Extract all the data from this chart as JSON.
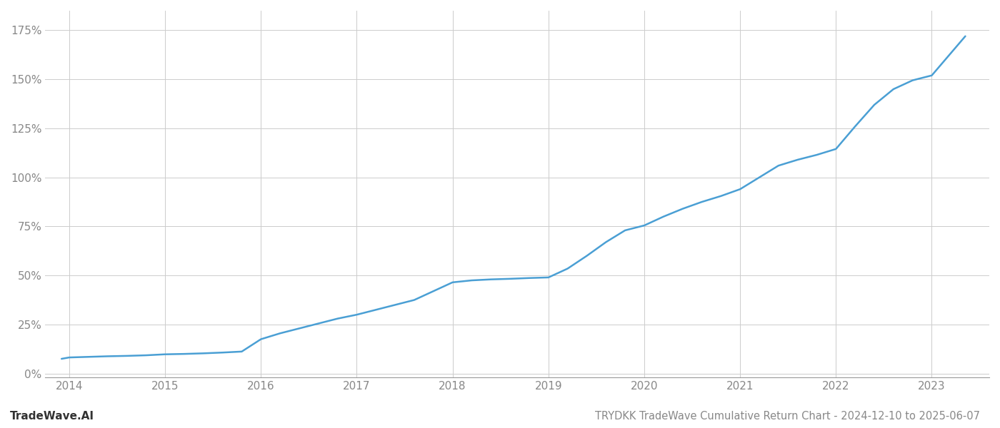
{
  "title": "TRYDKK TradeWave Cumulative Return Chart - 2024-12-10 to 2025-06-07",
  "watermark": "TradeWave.AI",
  "line_color": "#4a9fd4",
  "background_color": "#ffffff",
  "grid_color": "#cccccc",
  "x_years": [
    2014,
    2015,
    2016,
    2017,
    2018,
    2019,
    2020,
    2021,
    2022,
    2023
  ],
  "x_data": [
    2013.92,
    2014.0,
    2014.2,
    2014.4,
    2014.6,
    2014.8,
    2015.0,
    2015.2,
    2015.4,
    2015.6,
    2015.8,
    2016.0,
    2016.2,
    2016.4,
    2016.6,
    2016.8,
    2017.0,
    2017.2,
    2017.4,
    2017.6,
    2017.8,
    2018.0,
    2018.2,
    2018.4,
    2018.6,
    2018.8,
    2019.0,
    2019.2,
    2019.4,
    2019.6,
    2019.8,
    2020.0,
    2020.2,
    2020.4,
    2020.6,
    2020.8,
    2021.0,
    2021.2,
    2021.4,
    2021.6,
    2021.8,
    2022.0,
    2022.2,
    2022.4,
    2022.6,
    2022.8,
    2023.0,
    2023.35
  ],
  "y_data": [
    0.075,
    0.082,
    0.085,
    0.088,
    0.09,
    0.093,
    0.098,
    0.1,
    0.103,
    0.107,
    0.112,
    0.175,
    0.205,
    0.23,
    0.255,
    0.28,
    0.3,
    0.325,
    0.35,
    0.375,
    0.42,
    0.465,
    0.475,
    0.48,
    0.483,
    0.487,
    0.49,
    0.535,
    0.6,
    0.67,
    0.73,
    0.755,
    0.8,
    0.84,
    0.875,
    0.905,
    0.94,
    1.0,
    1.06,
    1.09,
    1.115,
    1.145,
    1.26,
    1.37,
    1.45,
    1.495,
    1.52,
    1.72
  ],
  "yticks": [
    0.0,
    0.25,
    0.5,
    0.75,
    1.0,
    1.25,
    1.5,
    1.75
  ],
  "ytick_labels": [
    "0%",
    "25%",
    "50%",
    "75%",
    "100%",
    "125%",
    "150%",
    "175%"
  ],
  "ylim": [
    -0.02,
    1.85
  ],
  "xlim": [
    2013.75,
    2023.6
  ],
  "line_width": 1.8,
  "title_fontsize": 10.5,
  "watermark_fontsize": 11,
  "tick_fontsize": 11,
  "tick_color": "#888888",
  "spine_color": "#999999"
}
